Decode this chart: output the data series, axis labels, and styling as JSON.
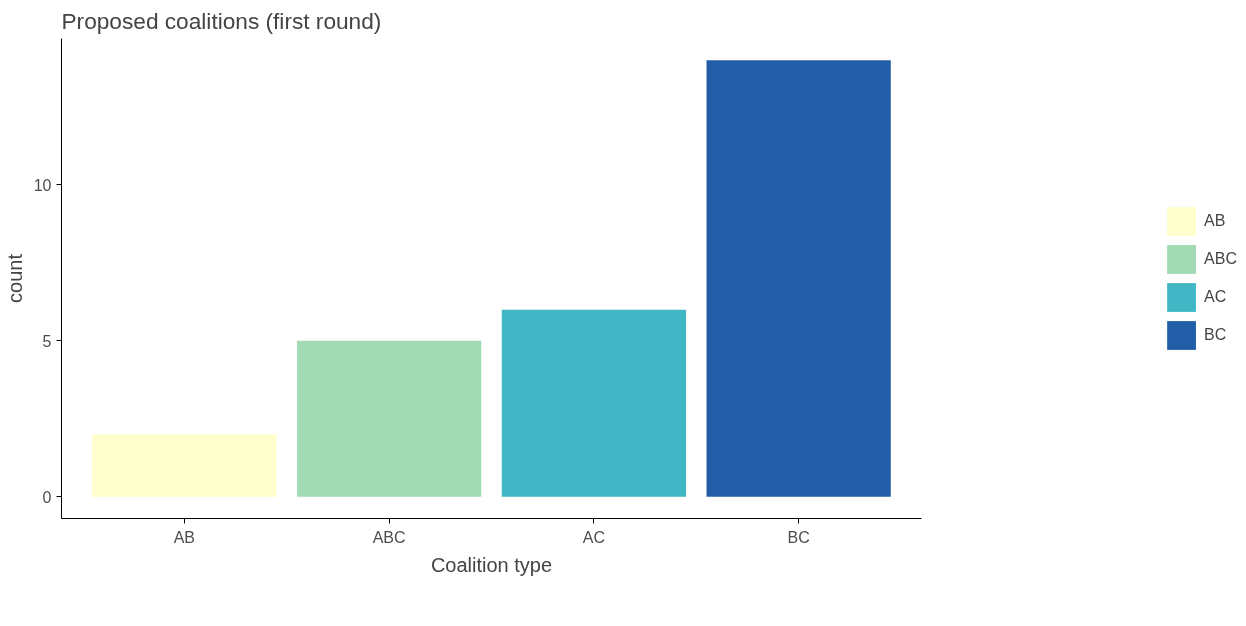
{
  "chart_data": {
    "type": "bar",
    "title": "Proposed coalitions (first round)",
    "xlabel": "Coalition type",
    "ylabel": "count",
    "categories": [
      "AB",
      "ABC",
      "AC",
      "BC"
    ],
    "series": [
      {
        "name": "AB",
        "color": "#ffffcc",
        "values": [
          2,
          null,
          null,
          null
        ]
      },
      {
        "name": "ABC",
        "color": "#a1dab4",
        "values": [
          null,
          5,
          null,
          null
        ]
      },
      {
        "name": "AC",
        "color": "#41b6c4",
        "values": [
          null,
          null,
          6,
          null
        ]
      },
      {
        "name": "BC",
        "color": "#225ea8",
        "values": [
          null,
          null,
          null,
          14
        ]
      }
    ],
    "ylim": [
      -0.7,
      14.7
    ],
    "yticks": [
      0,
      5,
      10
    ],
    "grid": false,
    "legend": "right"
  }
}
